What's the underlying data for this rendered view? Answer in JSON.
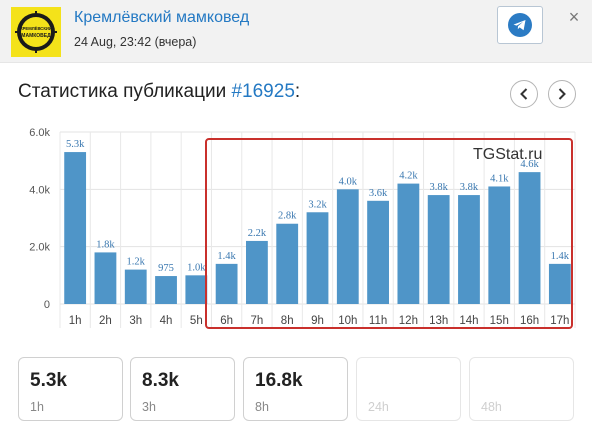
{
  "header": {
    "channel_name": "Кремлёвский мамковед",
    "post_date": "24 Aug, 23:42 (вчера)",
    "avatar_text_line1": "КРЕМЛЁВСКИЙ",
    "avatar_text_line2": "МАМКОВЕД",
    "avatar_color": "#f4e21a",
    "telegram_icon": "telegram-icon",
    "close_label": "×"
  },
  "stats": {
    "title_prefix": "Статистика публикации ",
    "post_id": "#16925",
    "title_suffix": ":",
    "watermark": "TGStat.ru",
    "accent_color": "#2479c3",
    "highlight_color": "#c9302c"
  },
  "chart_data": {
    "type": "bar",
    "categories": [
      "1h",
      "2h",
      "3h",
      "4h",
      "5h",
      "6h",
      "7h",
      "8h",
      "9h",
      "10h",
      "11h",
      "12h",
      "13h",
      "14h",
      "15h",
      "16h",
      "17h"
    ],
    "values": [
      5300,
      1800,
      1200,
      975,
      1000,
      1400,
      2200,
      2800,
      3200,
      4000,
      3600,
      4200,
      3800,
      3800,
      4100,
      4600,
      1400
    ],
    "labels": [
      "5.3k",
      "1.8k",
      "1.2k",
      "975",
      "1.0k",
      "1.4k",
      "2.2k",
      "2.8k",
      "3.2k",
      "4.0k",
      "3.6k",
      "4.2k",
      "3.8k",
      "3.8k",
      "4.1k",
      "4.6k",
      "1.4k"
    ],
    "yticks": [
      0,
      2000,
      4000,
      6000
    ],
    "ytick_labels": [
      "0",
      "2.0k",
      "4.0k",
      "6.0k"
    ],
    "ylim": [
      0,
      6000
    ],
    "bar_color": "#4f95c8",
    "label_color": "#3a78b0",
    "grid": true
  },
  "summary_cards": [
    {
      "value": "5.3k",
      "label": "1h",
      "enabled": true
    },
    {
      "value": "8.3k",
      "label": "3h",
      "enabled": true
    },
    {
      "value": "16.8k",
      "label": "8h",
      "enabled": true
    },
    {
      "value": "",
      "label": "24h",
      "enabled": false
    },
    {
      "value": "",
      "label": "48h",
      "enabled": false
    }
  ]
}
